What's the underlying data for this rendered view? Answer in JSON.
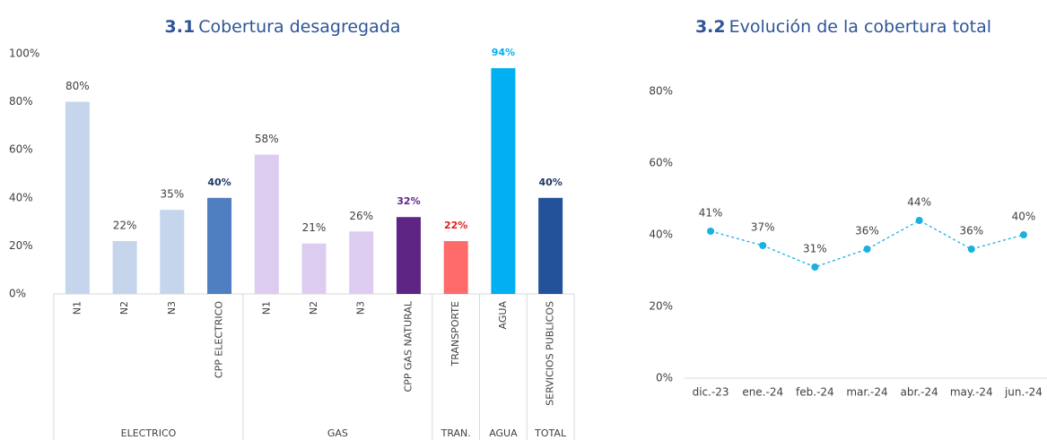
{
  "chart_data": [
    {
      "type": "bar",
      "title_number": "3.1",
      "title": "Cobertura desagregada",
      "groups": [
        {
          "name": "ELECTRICO",
          "categories": [
            "N1",
            "N2",
            "N3",
            "CPP ELECTRICO"
          ]
        },
        {
          "name": "GAS",
          "categories": [
            "N1",
            "N2",
            "N3",
            "CPP GAS NATURAL"
          ]
        },
        {
          "name": "TRAN.",
          "categories": [
            "TRANSPORTE"
          ]
        },
        {
          "name": "AGUA",
          "categories": [
            "AGUA"
          ]
        },
        {
          "name": "TOTAL",
          "categories": [
            "SERVICIOS PUBLICOS"
          ]
        }
      ],
      "values": [
        80,
        22,
        35,
        40,
        58,
        21,
        26,
        32,
        22,
        94,
        40
      ],
      "value_labels": [
        "80%",
        "22%",
        "35%",
        "40%",
        "58%",
        "21%",
        "26%",
        "32%",
        "22%",
        "94%",
        "40%"
      ],
      "colors": [
        "#c5d5ec",
        "#c5d5ec",
        "#c5d5ec",
        "#4f7fc0",
        "#dccdf0",
        "#dccdf0",
        "#dccdf0",
        "#5f2585",
        "#ff6b6b",
        "#00b0f0",
        "#23529b"
      ],
      "label_colors": [
        "#404040",
        "#404040",
        "#404040",
        "#1f3864",
        "#404040",
        "#404040",
        "#404040",
        "#5f2585",
        "#e81c1c",
        "#00b0f0",
        "#1f3864"
      ],
      "label_bold": [
        false,
        false,
        false,
        true,
        false,
        false,
        false,
        true,
        true,
        true,
        true
      ],
      "ylim": [
        0,
        100
      ],
      "yticks": [
        {
          "value": 0,
          "label": "0%"
        },
        {
          "value": 20,
          "label": "20%"
        },
        {
          "value": 40,
          "label": "40%"
        },
        {
          "value": 60,
          "label": "60%"
        },
        {
          "value": 80,
          "label": "80%"
        },
        {
          "value": 100,
          "label": "100%"
        }
      ]
    },
    {
      "type": "line",
      "title_number": "3.2",
      "title": "Evolución de la cobertura total",
      "categories": [
        "dic.-23",
        "ene.-24",
        "feb.-24",
        "mar.-24",
        "abr.-24",
        "may.-24",
        "jun.-24"
      ],
      "values": [
        41,
        37,
        31,
        36,
        44,
        36,
        40
      ],
      "value_labels": [
        "41%",
        "37%",
        "31%",
        "36%",
        "44%",
        "36%",
        "40%"
      ],
      "color": "#1ab0e0",
      "ylim": [
        0,
        95
      ],
      "yticks": [
        {
          "value": 0,
          "label": "0%"
        },
        {
          "value": 20,
          "label": "20%"
        },
        {
          "value": 40,
          "label": "40%"
        },
        {
          "value": 60,
          "label": "60%"
        },
        {
          "value": 80,
          "label": "80%"
        }
      ]
    }
  ]
}
